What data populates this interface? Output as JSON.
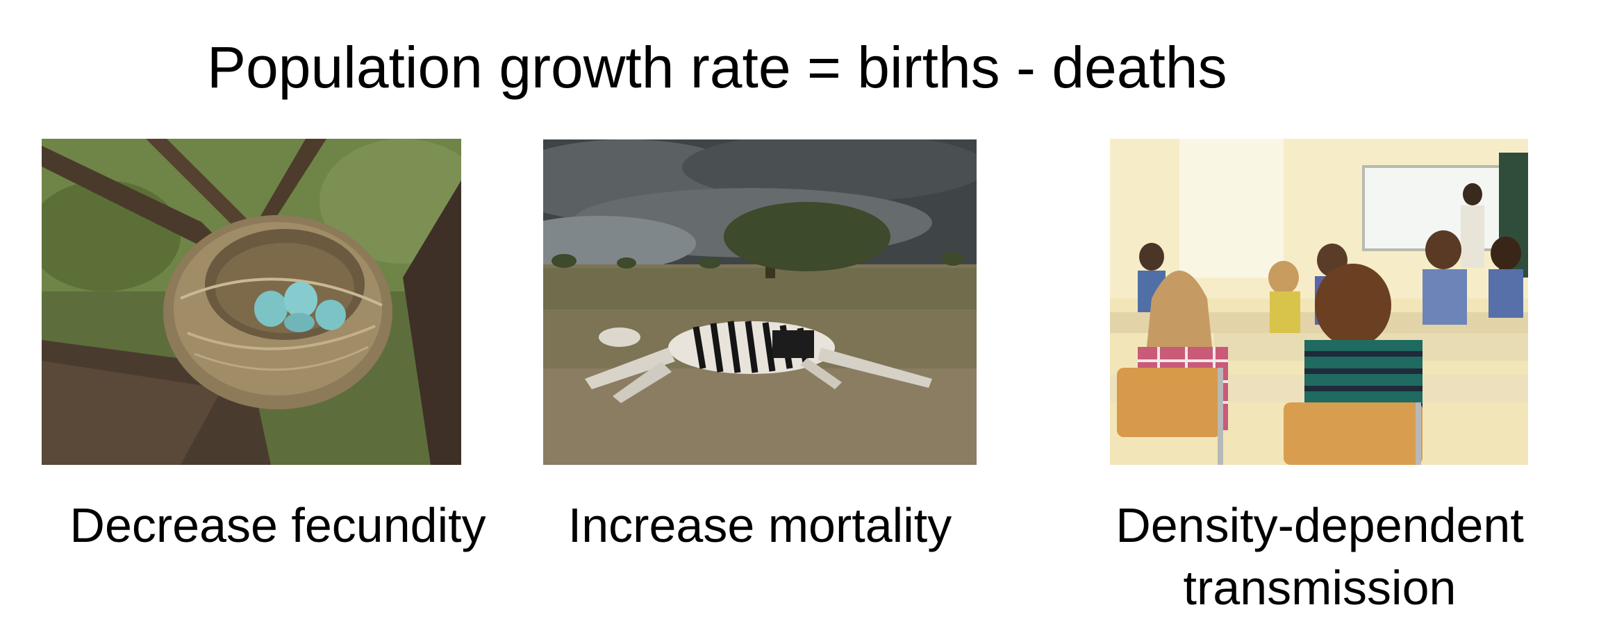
{
  "slide": {
    "title": "Population growth rate = births - deaths",
    "panels": [
      {
        "caption": "Decrease fecundity",
        "image": "bird-nest-with-eggs"
      },
      {
        "caption": "Increase mortality",
        "image": "dead-zebra-on-savanna"
      },
      {
        "caption": "Density-dependent transmission",
        "image": "crowded-classroom"
      }
    ]
  }
}
